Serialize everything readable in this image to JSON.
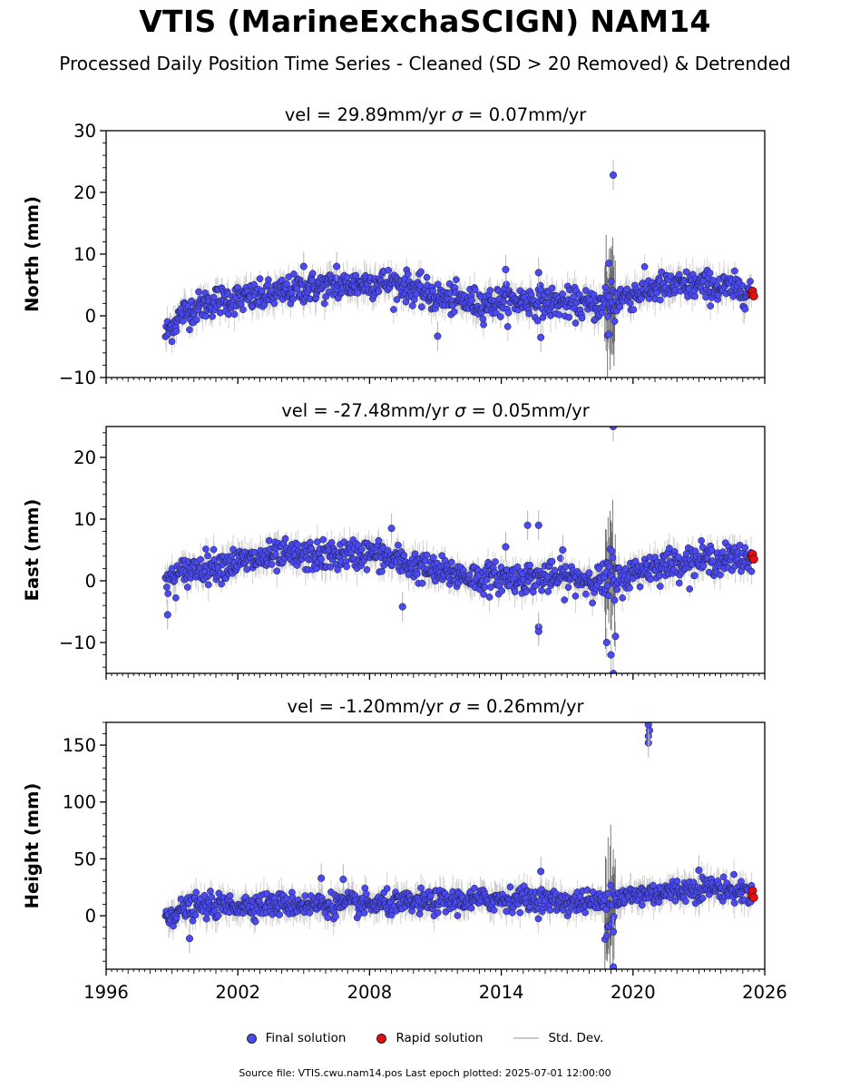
{
  "title": "VTIS (MarineExchaSCIGN) NAM14",
  "subtitle": "Processed Daily Position Time Series - Cleaned (SD > 20 Removed) & Detrended",
  "legend": {
    "final": "Final solution",
    "rapid": "Rapid solution",
    "std": "Std. Dev."
  },
  "footer": "Source file: VTIS.cwu.nam14.pos  Last epoch plotted: 2025-07-01 12:00:00",
  "colors": {
    "final": "#4a4af0",
    "rapid": "#e01010",
    "std": "#b4b4b4",
    "std_dense": "#555555"
  },
  "chart_data": [
    {
      "type": "scatter",
      "panel": "north",
      "title_prefix": "vel = 29.89mm/yr",
      "sigma_symbol": "σ",
      "title_suffix": " = 0.07mm/yr",
      "ylabel": "North (mm)",
      "xlim": [
        1996,
        2026
      ],
      "ylim": [
        -10,
        30
      ],
      "yticks": [
        -10,
        0,
        10,
        20,
        30
      ],
      "ytick_labels": [
        "−10",
        "0",
        "10",
        "20",
        "30"
      ],
      "xticks": [
        1996,
        2002,
        2008,
        2014,
        2020,
        2026
      ],
      "xtick_labels": [],
      "trend": [
        [
          1998.7,
          -3
        ],
        [
          1999.5,
          0.5
        ],
        [
          2001,
          2.5
        ],
        [
          2003,
          3
        ],
        [
          2005,
          4.5
        ],
        [
          2007,
          5
        ],
        [
          2008.5,
          5.5
        ],
        [
          2009.5,
          5
        ],
        [
          2011,
          3
        ],
        [
          2013,
          2
        ],
        [
          2015,
          2.5
        ],
        [
          2017,
          2
        ],
        [
          2018.8,
          1.5
        ],
        [
          2019.5,
          3
        ],
        [
          2021,
          4.5
        ],
        [
          2023,
          5
        ],
        [
          2025.4,
          4
        ]
      ],
      "scatter_sd": 1.2,
      "outliers": [
        [
          2019.1,
          22.8
        ],
        [
          2018.9,
          8.5
        ],
        [
          2011.1,
          -3.3
        ],
        [
          2014.2,
          7.5
        ],
        [
          2015.8,
          -3.5
        ],
        [
          2015.7,
          7
        ],
        [
          2005.0,
          8
        ],
        [
          2006.5,
          8
        ],
        [
          2018.9,
          -3
        ]
      ],
      "rapid": [
        [
          2025.4,
          3.5
        ],
        [
          2025.45,
          4
        ],
        [
          2025.5,
          3.2
        ]
      ],
      "noisy_interval": [
        2018.7,
        2019.2
      ]
    },
    {
      "type": "scatter",
      "panel": "east",
      "title_prefix": "vel = -27.48mm/yr",
      "sigma_symbol": "σ",
      "title_suffix": " = 0.05mm/yr",
      "ylabel": "East (mm)",
      "xlim": [
        1996,
        2026
      ],
      "ylim": [
        -15,
        25
      ],
      "yticks": [
        -10,
        0,
        10,
        20
      ],
      "ytick_labels": [
        "−10",
        "0",
        "10",
        "20"
      ],
      "xticks": [
        1996,
        2002,
        2008,
        2014,
        2020,
        2026
      ],
      "xtick_labels": [],
      "trend": [
        [
          1998.7,
          0
        ],
        [
          2000,
          2
        ],
        [
          2002,
          3
        ],
        [
          2004,
          4
        ],
        [
          2006,
          4
        ],
        [
          2008,
          4.5
        ],
        [
          2009.5,
          3
        ],
        [
          2011,
          1.5
        ],
        [
          2013,
          0.5
        ],
        [
          2015,
          0.5
        ],
        [
          2017,
          0.5
        ],
        [
          2018.8,
          0
        ],
        [
          2019.3,
          0
        ],
        [
          2020.5,
          2
        ],
        [
          2022,
          3
        ],
        [
          2023.5,
          3.5
        ],
        [
          2025.4,
          3.5
        ]
      ],
      "scatter_sd": 1.2,
      "outliers": [
        [
          2019.1,
          25
        ],
        [
          2015.7,
          9
        ],
        [
          2015.2,
          9
        ],
        [
          2016.8,
          5
        ],
        [
          2009.0,
          8.5
        ],
        [
          2009.5,
          -4.2
        ],
        [
          2015.7,
          -7.5
        ],
        [
          2015.7,
          -8.2
        ],
        [
          1998.8,
          -5.5
        ],
        [
          2019.0,
          -12
        ],
        [
          2019.1,
          -15
        ],
        [
          2018.8,
          -10
        ],
        [
          2019.2,
          -9
        ],
        [
          2014.2,
          5.5
        ]
      ],
      "rapid": [
        [
          2025.4,
          3.8
        ],
        [
          2025.45,
          4.3
        ],
        [
          2025.5,
          3.5
        ]
      ],
      "noisy_interval": [
        2018.7,
        2019.2
      ]
    },
    {
      "type": "scatter",
      "panel": "height",
      "title_prefix": "vel = -1.20mm/yr",
      "sigma_symbol": "σ",
      "title_suffix": " = 0.26mm/yr",
      "ylabel": "Height (mm)",
      "xlim": [
        1996,
        2026
      ],
      "ylim": [
        -47,
        170
      ],
      "yticks": [
        0,
        50,
        100,
        150
      ],
      "ytick_labels": [
        "0",
        "50",
        "100",
        "150"
      ],
      "xticks": [
        1996,
        2002,
        2008,
        2014,
        2020,
        2026
      ],
      "xtick_labels": [
        "1996",
        "2002",
        "2008",
        "2014",
        "2020",
        "2026"
      ],
      "trend": [
        [
          1998.7,
          0
        ],
        [
          2000,
          8
        ],
        [
          2003,
          10
        ],
        [
          2006,
          10
        ],
        [
          2009,
          10
        ],
        [
          2011,
          12
        ],
        [
          2013,
          14
        ],
        [
          2015,
          15
        ],
        [
          2017,
          12
        ],
        [
          2018.8,
          12
        ],
        [
          2020,
          18
        ],
        [
          2022,
          22
        ],
        [
          2023.5,
          25
        ],
        [
          2025.4,
          20
        ]
      ],
      "scatter_sd": 5,
      "outliers": [
        [
          2020.7,
          152
        ],
        [
          2020.7,
          158
        ],
        [
          2020.75,
          163
        ],
        [
          2020.7,
          168
        ],
        [
          2019.1,
          -45
        ],
        [
          2019.1,
          -14
        ],
        [
          2005.8,
          33
        ],
        [
          2006.8,
          32
        ],
        [
          1999.8,
          -20
        ],
        [
          2015.8,
          39
        ],
        [
          2023.0,
          40
        ]
      ],
      "rapid": [
        [
          2025.4,
          18
        ],
        [
          2025.45,
          22
        ],
        [
          2025.5,
          16
        ]
      ],
      "noisy_interval": [
        2018.7,
        2019.2
      ]
    }
  ]
}
